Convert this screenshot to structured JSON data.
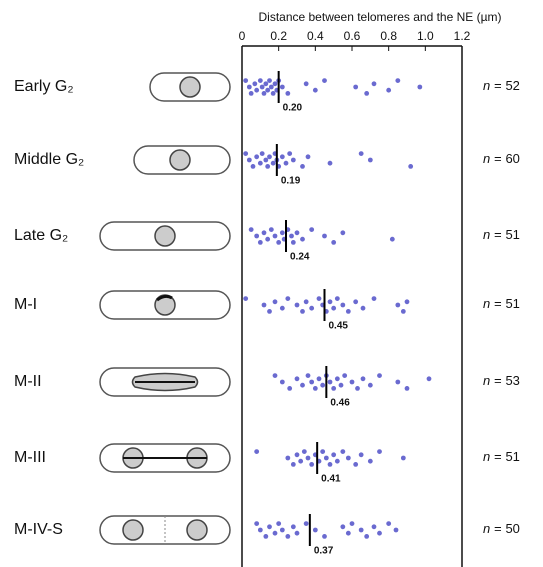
{
  "chart_data": {
    "type": "strip",
    "title": "Distance between telomeres and the NE (µm)",
    "xlim": [
      0,
      1.2
    ],
    "xticks": [
      0,
      0.2,
      0.4,
      0.6,
      0.8,
      {
        "value": 1,
        "label": "1.0"
      },
      1.2
    ],
    "color": "#6a6ad0",
    "n_prefix": "n =",
    "groups": [
      {
        "name": "Early G₂",
        "median": 0.2,
        "median_label": "0.20",
        "n": 52,
        "values": [
          0.02,
          0.04,
          0.05,
          0.07,
          0.08,
          0.1,
          0.11,
          0.12,
          0.13,
          0.14,
          0.15,
          0.16,
          0.17,
          0.18,
          0.19,
          0.2,
          0.22,
          0.25,
          0.35,
          0.4,
          0.45,
          0.62,
          0.68,
          0.72,
          0.8,
          0.85,
          0.97
        ]
      },
      {
        "name": "Middle G₂",
        "median": 0.19,
        "median_label": "0.19",
        "n": 60,
        "values": [
          0.02,
          0.04,
          0.06,
          0.08,
          0.1,
          0.11,
          0.13,
          0.14,
          0.15,
          0.17,
          0.18,
          0.19,
          0.2,
          0.22,
          0.24,
          0.26,
          0.28,
          0.33,
          0.36,
          0.48,
          0.65,
          0.7,
          0.92
        ]
      },
      {
        "name": "Late G₂",
        "median": 0.24,
        "median_label": "0.24",
        "n": 51,
        "values": [
          0.05,
          0.08,
          0.1,
          0.12,
          0.14,
          0.16,
          0.18,
          0.2,
          0.22,
          0.23,
          0.25,
          0.27,
          0.28,
          0.3,
          0.33,
          0.38,
          0.45,
          0.5,
          0.55,
          0.82
        ]
      },
      {
        "name": "M-I",
        "median": 0.45,
        "median_label": "0.45",
        "n": 51,
        "values": [
          0.02,
          0.12,
          0.15,
          0.18,
          0.22,
          0.25,
          0.3,
          0.33,
          0.35,
          0.38,
          0.42,
          0.44,
          0.46,
          0.48,
          0.5,
          0.52,
          0.55,
          0.58,
          0.62,
          0.66,
          0.72,
          0.85,
          0.88,
          0.9
        ]
      },
      {
        "name": "M-II",
        "median": 0.46,
        "median_label": "0.46",
        "n": 53,
        "values": [
          0.18,
          0.22,
          0.26,
          0.3,
          0.33,
          0.36,
          0.38,
          0.4,
          0.42,
          0.44,
          0.46,
          0.48,
          0.5,
          0.52,
          0.54,
          0.56,
          0.6,
          0.63,
          0.66,
          0.7,
          0.75,
          0.85,
          0.9,
          1.02
        ]
      },
      {
        "name": "M-III",
        "median": 0.41,
        "median_label": "0.41",
        "n": 51,
        "values": [
          0.08,
          0.25,
          0.28,
          0.3,
          0.32,
          0.34,
          0.36,
          0.38,
          0.4,
          0.42,
          0.44,
          0.46,
          0.48,
          0.5,
          0.52,
          0.55,
          0.58,
          0.62,
          0.65,
          0.7,
          0.75,
          0.88
        ]
      },
      {
        "name": "M-IV-S",
        "median": 0.37,
        "median_label": "0.37",
        "n": 50,
        "values": [
          0.08,
          0.1,
          0.13,
          0.15,
          0.18,
          0.2,
          0.22,
          0.25,
          0.28,
          0.3,
          0.35,
          0.4,
          0.45,
          0.55,
          0.58,
          0.6,
          0.65,
          0.68,
          0.72,
          0.75,
          0.8,
          0.84
        ]
      }
    ]
  }
}
